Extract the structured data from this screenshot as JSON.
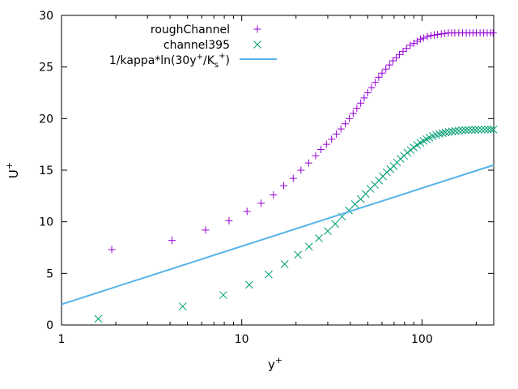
{
  "chart_data": {
    "type": "scatter",
    "xscale": "log",
    "xlim": [
      1,
      250
    ],
    "ylim": [
      0,
      30
    ],
    "xticks": [
      1,
      10,
      100
    ],
    "yticks": [
      0,
      5,
      10,
      15,
      20,
      25,
      30
    ],
    "grid": false,
    "legend_position": "top-left",
    "xlabel": {
      "base": "y",
      "sup": "+"
    },
    "ylabel": {
      "base": "U",
      "sup": "+"
    },
    "series": [
      {
        "name": "roughChannel",
        "marker": "plus",
        "color": "#9400d3",
        "x": [
          1.9,
          4.1,
          6.3,
          8.5,
          10.7,
          12.8,
          15.0,
          17.1,
          19.3,
          21.3,
          23.5,
          25.7,
          27.5,
          29.5,
          31.5,
          33.5,
          35.5,
          37.5,
          39.5,
          41.5,
          43.5,
          45.7,
          47.8,
          50.0,
          52.5,
          55.0,
          57.5,
          60.0,
          63.0,
          66.0,
          69.0,
          72.0,
          75.0,
          78.5,
          82.0,
          86.0,
          90.0,
          94.0,
          98.0,
          102.0,
          107.0,
          112.0,
          117.0,
          122.0,
          128.0,
          134.0,
          140.0,
          146.0,
          152.0,
          160.0,
          168.0,
          176.0,
          184.0,
          192.0,
          200.0,
          210.0,
          220.0,
          230.0,
          240.0,
          248.0
        ],
        "y": [
          7.3,
          8.2,
          9.2,
          10.1,
          11.0,
          11.8,
          12.6,
          13.5,
          14.2,
          15.0,
          15.7,
          16.4,
          17.0,
          17.5,
          18.0,
          18.5,
          19.0,
          19.5,
          20.0,
          20.5,
          21.0,
          21.5,
          22.0,
          22.5,
          23.0,
          23.5,
          24.0,
          24.4,
          24.8,
          25.2,
          25.6,
          25.9,
          26.2,
          26.5,
          26.8,
          27.1,
          27.3,
          27.5,
          27.7,
          27.8,
          27.95,
          28.05,
          28.1,
          28.15,
          28.2,
          28.25,
          28.3,
          28.3,
          28.3,
          28.3,
          28.3,
          28.3,
          28.3,
          28.3,
          28.3,
          28.3,
          28.3,
          28.3,
          28.3,
          28.3
        ]
      },
      {
        "name": "channel395",
        "marker": "cross",
        "color": "#009e73",
        "x": [
          1.6,
          4.7,
          7.9,
          11.0,
          14.1,
          17.3,
          20.5,
          23.6,
          26.8,
          30.0,
          33.0,
          36.0,
          39.3,
          42.5,
          45.7,
          48.7,
          51.7,
          54.7,
          57.7,
          60.7,
          63.7,
          66.7,
          69.7,
          72.7,
          76.0,
          79.5,
          83.0,
          86.5,
          90.0,
          94.0,
          98.0,
          102.0,
          106.0,
          110.0,
          115.0,
          120.0,
          125.0,
          130.0,
          135.0,
          141.0,
          147.0,
          153.0,
          160.0,
          167.0,
          174.0,
          181.0,
          189.0,
          197.0,
          205.0,
          214.0,
          223.0,
          232.0,
          241.0,
          249.0
        ],
        "y": [
          0.6,
          1.8,
          2.9,
          3.9,
          4.9,
          5.9,
          6.8,
          7.6,
          8.4,
          9.1,
          9.8,
          10.5,
          11.1,
          11.7,
          12.2,
          12.7,
          13.2,
          13.6,
          14.0,
          14.4,
          14.8,
          15.1,
          15.4,
          15.75,
          16.1,
          16.4,
          16.7,
          16.95,
          17.2,
          17.45,
          17.65,
          17.85,
          18.0,
          18.15,
          18.3,
          18.4,
          18.5,
          18.58,
          18.65,
          18.7,
          18.75,
          18.8,
          18.83,
          18.86,
          18.88,
          18.9,
          18.91,
          18.92,
          18.93,
          18.93,
          18.94,
          18.94,
          18.94,
          18.94
        ]
      },
      {
        "name": "1/kappa*ln(30y+/Ks+)",
        "legend_label": {
          "a": "1/kappa*ln(30y",
          "sup1": "+",
          "b": "/K",
          "sub": "s",
          "sup2": "+",
          "c": ")"
        },
        "marker": "line",
        "color": "#56b4e9",
        "x": [
          1,
          250
        ],
        "y": [
          2.0,
          15.5
        ]
      }
    ]
  }
}
